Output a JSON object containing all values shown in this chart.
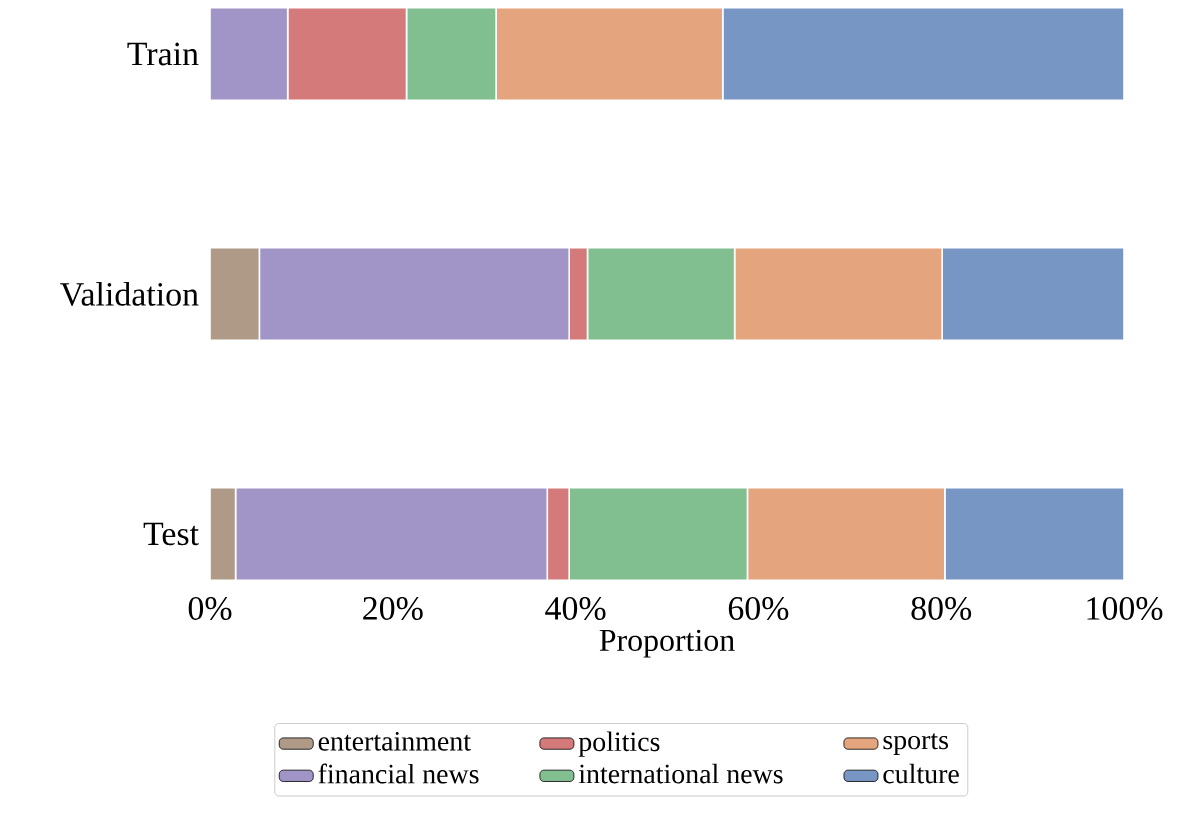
{
  "chart_data": {
    "type": "bar",
    "orientation": "horizontal",
    "stacked": true,
    "xlabel": "Proportion",
    "categories": [
      "Train",
      "Validation",
      "Test"
    ],
    "series": [
      {
        "name": "entertainment",
        "color": "#ae9a87",
        "values": [
          0,
          5.4,
          2.8
        ]
      },
      {
        "name": "financial news",
        "color": "#a195c7",
        "values": [
          8.5,
          33.9,
          34.1
        ]
      },
      {
        "name": "politics",
        "color": "#d47a7b",
        "values": [
          13.0,
          2.0,
          2.4
        ]
      },
      {
        "name": "international news",
        "color": "#82bf90",
        "values": [
          9.8,
          16.1,
          19.5
        ]
      },
      {
        "name": "sports",
        "color": "#e4a47d",
        "values": [
          24.8,
          22.7,
          21.6
        ]
      },
      {
        "name": "culture",
        "color": "#7896c4",
        "values": [
          43.9,
          19.9,
          19.6
        ]
      }
    ],
    "xlim": [
      0,
      100
    ],
    "xticks": [
      {
        "value": 0,
        "label": "0%"
      },
      {
        "value": 20,
        "label": "20%"
      },
      {
        "value": 40,
        "label": "40%"
      },
      {
        "value": 60,
        "label": "60%"
      },
      {
        "value": 80,
        "label": "80%"
      },
      {
        "value": 100,
        "label": "100%"
      }
    ],
    "legend": "bottom",
    "grid": false
  }
}
